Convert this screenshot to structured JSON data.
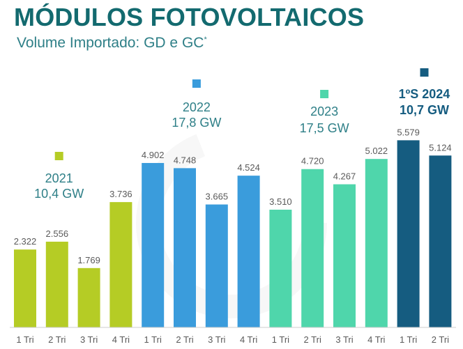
{
  "header": {
    "title": "MÓDULOS FOTOVOLTAICOS",
    "subtitle": "Volume Importado: GD e GC",
    "subtitle_mark": "*"
  },
  "chart_data": {
    "type": "bar",
    "title": "MÓDULOS FOTOVOLTAICOS",
    "subtitle": "Volume Importado: GD e GC*",
    "categories": [
      "1 Tri",
      "2 Tri",
      "3 Tri",
      "4 Tri",
      "1 Tri",
      "2 Tri",
      "3 Tri",
      "4 Tri",
      "1 Tri",
      "2 Tri",
      "3 Tri",
      "4 Tri",
      "1 Tri",
      "2 Tri"
    ],
    "values": [
      2322,
      2556,
      1769,
      3736,
      4902,
      4748,
      3665,
      4524,
      3510,
      4720,
      4267,
      5022,
      5579,
      5124
    ],
    "value_labels": [
      "2.322",
      "2.556",
      "1.769",
      "3.736",
      "4.902",
      "4.748",
      "3.665",
      "4.524",
      "3.510",
      "4.720",
      "4.267",
      "5.022",
      "5.579",
      "5.124"
    ],
    "ylim": [
      0,
      6000
    ],
    "grid": false,
    "groups": [
      {
        "year": "2021",
        "total": "10,4 GW",
        "color": "#b5cc25",
        "start": 0,
        "count": 4,
        "bold": false
      },
      {
        "year": "2022",
        "total": "17,8 GW",
        "color": "#3a9cdc",
        "start": 4,
        "count": 4,
        "bold": false
      },
      {
        "year": "2023",
        "total": "17,5 GW",
        "color": "#4fd6ab",
        "start": 8,
        "count": 4,
        "bold": false
      },
      {
        "year": "1ºS 2024",
        "total": "10,7 GW",
        "color": "#155c80",
        "start": 12,
        "count": 2,
        "bold": true
      }
    ],
    "colors": {
      "text": "#5a5a5a",
      "year_text": "#2e7f87",
      "axis": "#cccccc",
      "title": "#136a6f"
    }
  }
}
